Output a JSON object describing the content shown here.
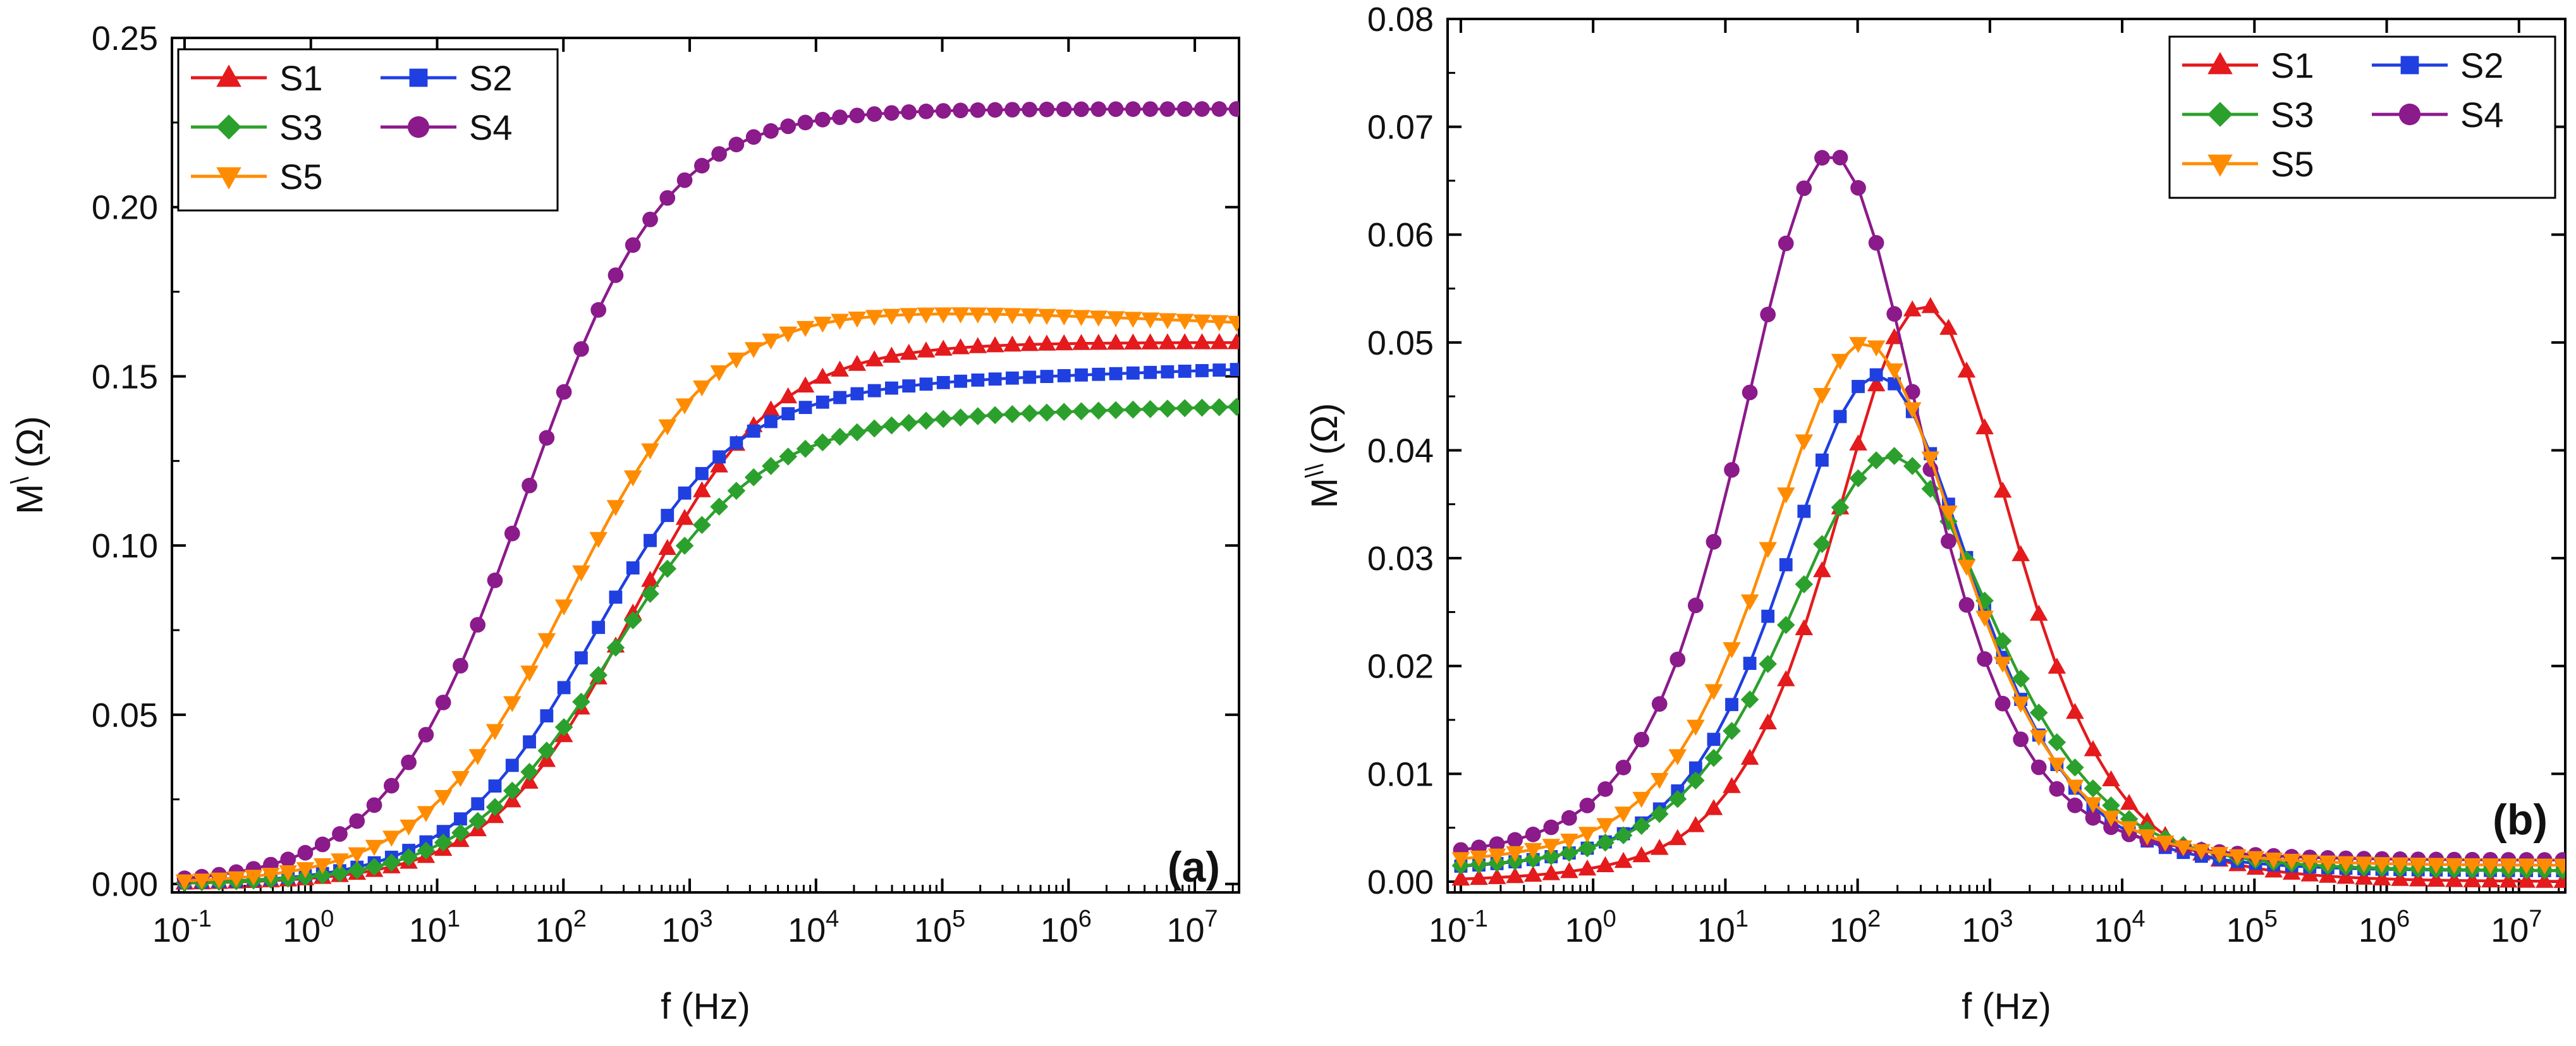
{
  "chart_data": [
    {
      "type": "line",
      "panel_label": "(a)",
      "xlabel": "f (Hz)",
      "ylabel": "M\\ (Ω)",
      "ylabel_main": "M",
      "ylabel_sup": "\\",
      "ylabel_unit": "(Ω)",
      "xscale": "log",
      "x_decades": [
        -1,
        0,
        1,
        2,
        3,
        4,
        5,
        6,
        7
      ],
      "xlim_log10": [
        -1.1,
        7.35
      ],
      "ylim": [
        -0.0025,
        0.25
      ],
      "yticks": [
        "0.00",
        "0.05",
        "0.10",
        "0.15",
        "0.20",
        "0.25"
      ],
      "legend": {
        "placement": "top-left",
        "entries": [
          "S1",
          "S2",
          "S3",
          "S4",
          "S5"
        ]
      },
      "series": [
        {
          "name": "S1",
          "color": "#e41a1c",
          "marker": "triangle-up",
          "model": "step",
          "plateau": 0.16,
          "log_fc": 2.55,
          "width": 0.56,
          "tail": 0.0
        },
        {
          "name": "S2",
          "color": "#1f3fe0",
          "marker": "square",
          "model": "step",
          "plateau": 0.148,
          "log_fc": 2.25,
          "width": 0.56,
          "tail": 0.004
        },
        {
          "name": "S3",
          "color": "#2ca02c",
          "marker": "diamond",
          "model": "step",
          "plateau": 0.138,
          "log_fc": 2.4,
          "width": 0.58,
          "tail": 0.003
        },
        {
          "name": "S4",
          "color": "#8b1a8b",
          "marker": "circle",
          "model": "step",
          "plateau": 0.229,
          "log_fc": 1.7,
          "width": 0.55,
          "tail": 0.0
        },
        {
          "name": "S5",
          "color": "#ff8c00",
          "marker": "triangle-down",
          "model": "step",
          "plateau": 0.171,
          "log_fc": 2.05,
          "width": 0.58,
          "tail": -0.005
        }
      ]
    },
    {
      "type": "line",
      "panel_label": "(b)",
      "xlabel": "f (Hz)",
      "ylabel": "M\\\\ (Ω)",
      "ylabel_main": "M",
      "ylabel_sup": "\\\\",
      "ylabel_unit": "(Ω)",
      "xscale": "log",
      "x_decades": [
        -1,
        0,
        1,
        2,
        3,
        4,
        5,
        6,
        7
      ],
      "xlim_log10": [
        -1.1,
        7.35
      ],
      "ylim": [
        -0.001,
        0.08
      ],
      "yticks": [
        "0.00",
        "0.01",
        "0.02",
        "0.03",
        "0.04",
        "0.05",
        "0.06",
        "0.07",
        "0.08"
      ],
      "legend": {
        "placement": "top-right",
        "entries": [
          "S1",
          "S2",
          "S3",
          "S4",
          "S5"
        ]
      },
      "series": [
        {
          "name": "S1",
          "color": "#e41a1c",
          "marker": "triangle-up",
          "model": "peak",
          "peak": 0.0535,
          "log_fp": 2.5,
          "width": 0.62,
          "base": 0.0
        },
        {
          "name": "S2",
          "color": "#1f3fe0",
          "marker": "square",
          "model": "peak",
          "peak": 0.047,
          "log_fp": 2.15,
          "width": 0.64,
          "base": 0.001
        },
        {
          "name": "S3",
          "color": "#2ca02c",
          "marker": "diamond",
          "model": "peak",
          "peak": 0.0395,
          "log_fp": 2.25,
          "width": 0.7,
          "base": 0.001
        },
        {
          "name": "S4",
          "color": "#8b1a8b",
          "marker": "circle",
          "model": "peak",
          "peak": 0.0675,
          "log_fp": 1.8,
          "width": 0.62,
          "base": 0.002
        },
        {
          "name": "S5",
          "color": "#ff8c00",
          "marker": "triangle-down",
          "model": "peak",
          "peak": 0.05,
          "log_fp": 2.05,
          "width": 0.66,
          "base": 0.0015
        }
      ]
    }
  ]
}
